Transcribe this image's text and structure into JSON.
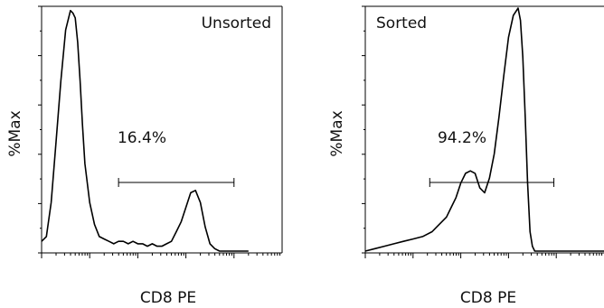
{
  "chart_data": [
    {
      "type": "line",
      "panel_label": "Unsorted",
      "xlabel": "CD8 PE",
      "ylabel": "%Max",
      "gate_percent": "16.4%",
      "gate_range_fraction": [
        0.32,
        0.8
      ],
      "y_range": [
        0,
        100
      ],
      "grid": false,
      "series": [
        {
          "color": "#000000",
          "x": [
            0.0,
            0.02,
            0.04,
            0.06,
            0.08,
            0.1,
            0.12,
            0.13,
            0.14,
            0.15,
            0.16,
            0.17,
            0.18,
            0.2,
            0.22,
            0.24,
            0.26,
            0.28,
            0.3,
            0.32,
            0.34,
            0.36,
            0.38,
            0.4,
            0.42,
            0.44,
            0.46,
            0.48,
            0.5,
            0.52,
            0.54,
            0.56,
            0.58,
            0.6,
            0.62,
            0.64,
            0.66,
            0.68,
            0.7,
            0.72,
            0.74,
            0.75,
            0.76,
            0.77,
            0.78,
            0.79,
            0.8,
            0.81,
            0.82,
            0.83,
            0.84,
            0.86
          ],
          "y": [
            4,
            6,
            20,
            45,
            70,
            91,
            99,
            98,
            96,
            86,
            70,
            52,
            36,
            20,
            11,
            6,
            5,
            4,
            3,
            4,
            4,
            3,
            4,
            3,
            3,
            2,
            3,
            2,
            2,
            3,
            4,
            8,
            12,
            18,
            24,
            25,
            20,
            10,
            3,
            1,
            0,
            0,
            0,
            0,
            0,
            0,
            0,
            0,
            0,
            0,
            0,
            0
          ]
        }
      ]
    },
    {
      "type": "line",
      "panel_label": "Sorted",
      "xlabel": "CD8 PE",
      "ylabel": "%Max",
      "gate_percent": "94.2%",
      "gate_range_fraction": [
        0.27,
        0.79
      ],
      "y_range": [
        0,
        100
      ],
      "grid": false,
      "series": [
        {
          "color": "#000000",
          "x": [
            0.0,
            0.04,
            0.08,
            0.12,
            0.16,
            0.2,
            0.24,
            0.28,
            0.3,
            0.32,
            0.34,
            0.36,
            0.38,
            0.4,
            0.42,
            0.44,
            0.46,
            0.48,
            0.5,
            0.52,
            0.54,
            0.56,
            0.58,
            0.6,
            0.62,
            0.64,
            0.65,
            0.66,
            0.67,
            0.68,
            0.69,
            0.7,
            0.71,
            0.72,
            0.74,
            0.76,
            0.8,
            0.85,
            0.9,
            0.95,
            1.0
          ],
          "y": [
            0,
            1,
            2,
            3,
            4,
            5,
            6,
            8,
            10,
            12,
            14,
            18,
            22,
            28,
            32,
            33,
            32,
            26,
            24,
            30,
            40,
            55,
            72,
            88,
            97,
            100,
            95,
            80,
            55,
            28,
            8,
            2,
            0,
            0,
            0,
            0,
            0,
            0,
            0,
            0,
            0
          ]
        }
      ]
    }
  ]
}
